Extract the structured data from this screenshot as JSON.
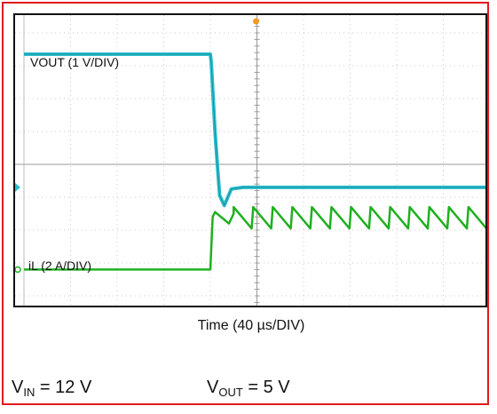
{
  "chart_data": {
    "type": "line",
    "title": "",
    "xlabel": "Time (40 µs/DIV)",
    "ylabel": "",
    "x_unit": "DIV",
    "x_range_div": [
      -5,
      5
    ],
    "y_range_div": [
      -4,
      4
    ],
    "grid": true,
    "colors": {
      "vout": "#2bbfcf",
      "il": "#1fb01f",
      "frame": "#e0191e"
    },
    "series": [
      {
        "name": "VOUT (1 V/DIV)",
        "points": [
          [
            -5,
            3.35
          ],
          [
            -1,
            3.35
          ],
          [
            -0.98,
            3.1
          ],
          [
            -0.9,
            1.0
          ],
          [
            -0.85,
            0.0
          ],
          [
            -0.8,
            -0.95
          ],
          [
            -0.7,
            -1.25
          ],
          [
            -0.55,
            -0.75
          ],
          [
            -0.3,
            -0.7
          ],
          [
            5,
            -0.7
          ]
        ]
      },
      {
        "name": "iL (2 A/DIV)",
        "points": [
          [
            -5,
            -3.2
          ],
          [
            -1,
            -3.2
          ],
          [
            -0.95,
            -1.6
          ],
          [
            -0.9,
            -1.45
          ],
          [
            -0.6,
            -1.8
          ],
          [
            -0.5,
            -1.5
          ],
          [
            5,
            -1.5
          ]
        ],
        "ripple": {
          "start_div": -0.5,
          "period_div": 0.42,
          "valley": -1.95,
          "peak": -1.3
        }
      }
    ],
    "markers": {
      "trigger": "orange",
      "ch1_level": "cyan",
      "ch2_level": "green"
    }
  },
  "labels": {
    "vout": "VOUT (1 V/DIV)",
    "il": "iL (2 A/DIV)",
    "time": "Time (40 µs/DIV)"
  },
  "conditions": {
    "vin_prefix": "V",
    "vin_sub": "IN",
    "vin_value": " = 12 V",
    "vout_prefix": "V",
    "vout_sub": "OUT",
    "vout_value": " = 5 V"
  }
}
